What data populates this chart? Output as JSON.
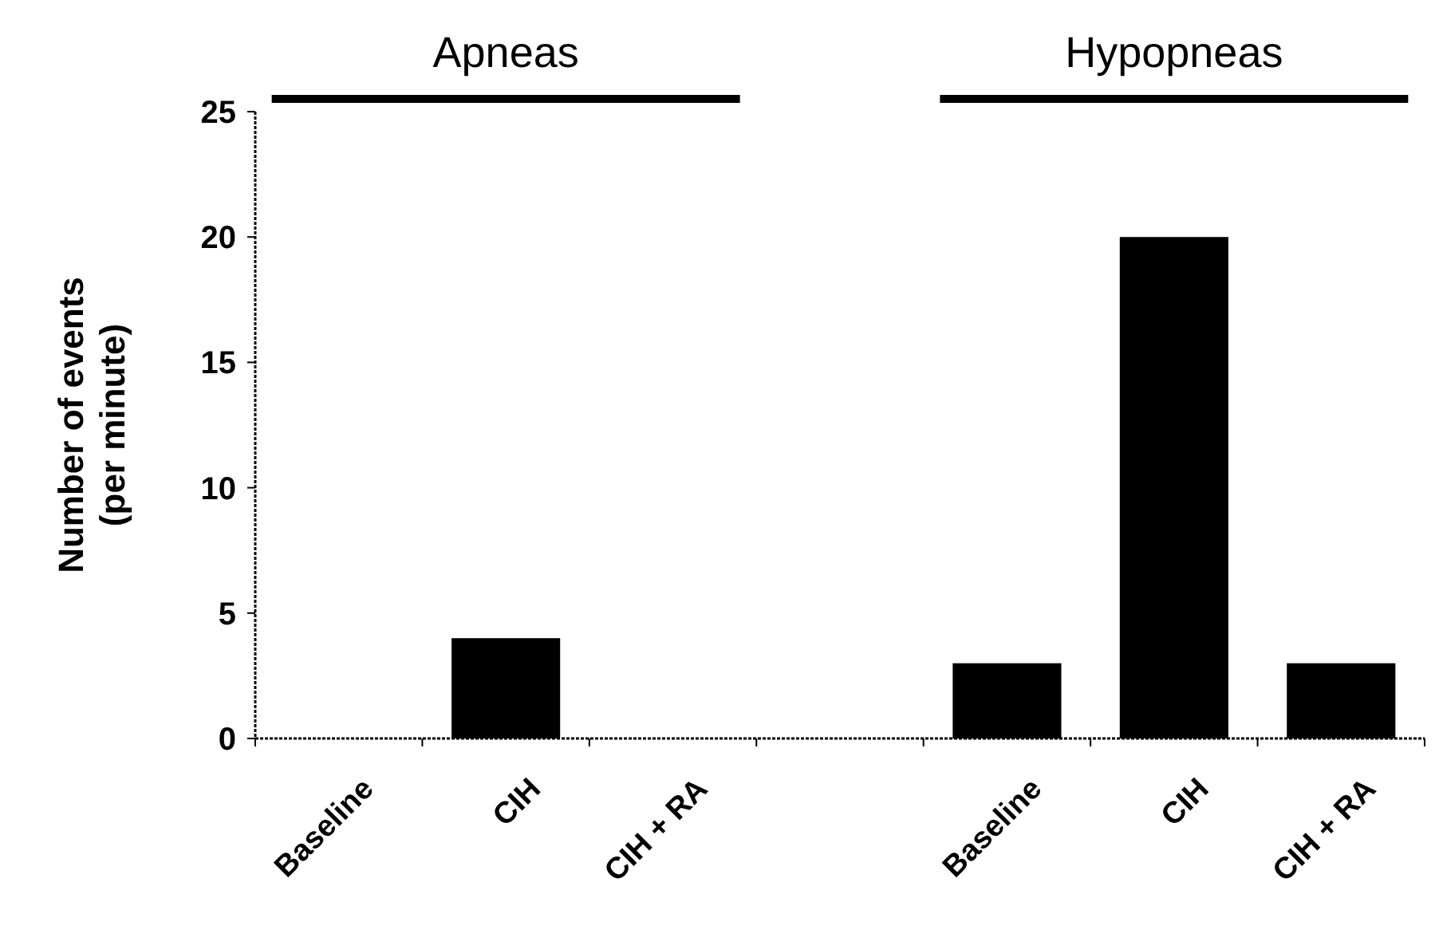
{
  "chart_data": {
    "type": "bar",
    "categories": [
      "Baseline",
      "CIH",
      "CIH + RA",
      null,
      "Baseline",
      "CIH",
      "CIH + RA"
    ],
    "values": [
      0,
      4,
      0,
      null,
      3,
      20,
      3
    ],
    "color": "#000000",
    "ylabel": "Number of events\n(per minute)",
    "ylim": [
      0,
      25
    ],
    "yticks": [
      0,
      5,
      10,
      15,
      20,
      25
    ],
    "annotations": [
      "Apneas",
      "Hypopneas"
    ]
  }
}
